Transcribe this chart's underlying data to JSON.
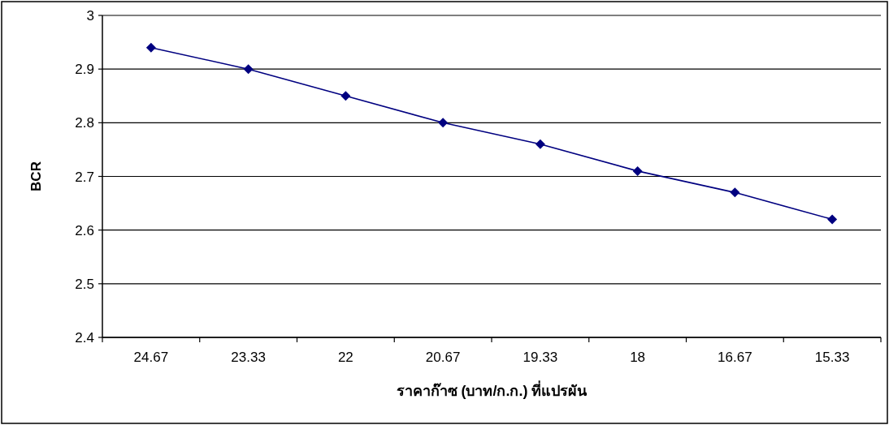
{
  "chart_data": {
    "type": "line",
    "xlabel": "ราคาก๊าซ (บาท/ก.ก.)  ที่แปรผัน",
    "ylabel": "BCR",
    "categories": [
      "24.67",
      "23.33",
      "22",
      "20.67",
      "19.33",
      "18",
      "16.67",
      "15.33"
    ],
    "series": [
      {
        "color": "#000080",
        "values": [
          2.94,
          2.9,
          2.85,
          2.8,
          2.76,
          2.71,
          2.67,
          2.62
        ]
      }
    ],
    "ylim": [
      2.4,
      3
    ],
    "yticks": [
      {
        "value": 2.4,
        "label": "2.4"
      },
      2.5,
      2.6,
      2.7,
      2.8,
      2.9,
      {
        "value": 3,
        "label": "3"
      }
    ],
    "grid": "y",
    "marker": "diamond",
    "line_style": "solid"
  }
}
